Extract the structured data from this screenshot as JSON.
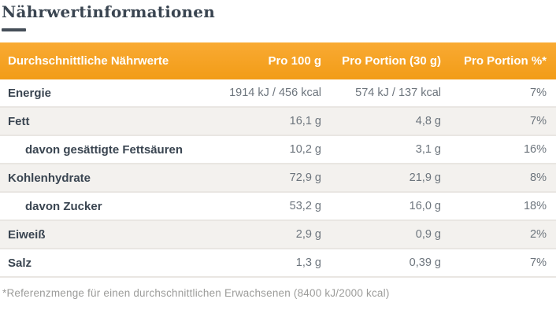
{
  "page": {
    "title": "Nährwertinformationen",
    "footnote": "*Referenzmenge für einen durchschnittlichen Erwachsenen (8400 kJ/2000 kcal)"
  },
  "colors": {
    "accent_orange": "#F4A226",
    "header_text": "#FFFFFF",
    "label_dark": "#3A4551",
    "value_gray": "#6D757D",
    "alt_row_bg": "#F3F1EE",
    "row_separator": "#E9E6E2",
    "footnote_gray": "#9C9C9A"
  },
  "table": {
    "headers": {
      "col1": "Durchschnittliche Nährwerte",
      "col2": "Pro 100 g",
      "col3": "Pro Portion (30 g)",
      "col4": "Pro Portion %*"
    },
    "rows": [
      {
        "label": "Energie",
        "indent": false,
        "per_100g": "1914 kJ / 456 kcal",
        "per_portion": "574 kJ / 137 kcal",
        "percent": "7%"
      },
      {
        "label": "Fett",
        "indent": false,
        "per_100g": "16,1 g",
        "per_portion": "4,8 g",
        "percent": "7%"
      },
      {
        "label": "davon gesättigte Fettsäuren",
        "indent": true,
        "per_100g": "10,2 g",
        "per_portion": "3,1 g",
        "percent": "16%"
      },
      {
        "label": "Kohlenhydrate",
        "indent": false,
        "per_100g": "72,9 g",
        "per_portion": "21,9 g",
        "percent": "8%"
      },
      {
        "label": "davon Zucker",
        "indent": true,
        "per_100g": "53,2 g",
        "per_portion": "16,0 g",
        "percent": "18%"
      },
      {
        "label": "Eiweiß",
        "indent": false,
        "per_100g": "2,9 g",
        "per_portion": "0,9 g",
        "percent": "2%"
      },
      {
        "label": "Salz",
        "indent": false,
        "per_100g": "1,3 g",
        "per_portion": "0,39 g",
        "percent": "7%"
      }
    ]
  }
}
